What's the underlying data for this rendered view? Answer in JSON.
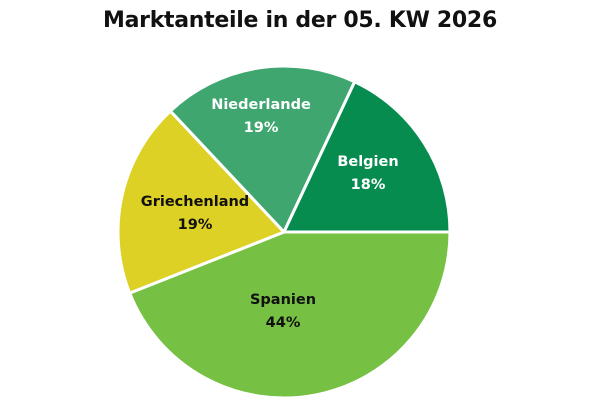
{
  "title": "Marktanteile in der 05. KW 2026",
  "chart_data": {
    "type": "pie",
    "title": "Marktanteile in der 05. KW 2026",
    "categories": [
      "Spanien",
      "Griechenland",
      "Niederlande",
      "Belgien"
    ],
    "values": [
      44,
      19,
      19,
      18
    ],
    "labels": [
      "44%",
      "19%",
      "19%",
      "18%"
    ],
    "colors": [
      "#76c043",
      "#dcd124",
      "#3fa66f",
      "#078c50"
    ],
    "label_colors": [
      "#111111",
      "#111111",
      "#ffffff",
      "#ffffff"
    ],
    "start_angle_deg": 0,
    "direction": "clockwise",
    "legend": "none"
  }
}
